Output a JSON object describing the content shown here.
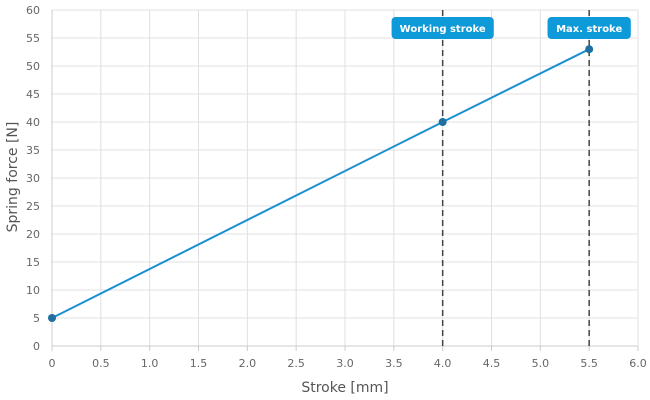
{
  "chart_data": {
    "type": "line",
    "xlabel": "Stroke [mm]",
    "ylabel": "Spring force [N]",
    "xlim": [
      0,
      6
    ],
    "ylim": [
      0,
      60
    ],
    "x_ticks": [
      "0",
      "0.5",
      "1.0",
      "1.5",
      "2.0",
      "2.5",
      "3.0",
      "3.5",
      "4.0",
      "4.5",
      "5.0",
      "5.5",
      "6.0"
    ],
    "y_ticks": [
      "0",
      "5",
      "10",
      "15",
      "20",
      "25",
      "30",
      "35",
      "40",
      "45",
      "50",
      "55",
      "60"
    ],
    "grid": true,
    "series": [
      {
        "points": [
          {
            "x": 0,
            "y": 5
          },
          {
            "x": 4.0,
            "y": 40
          },
          {
            "x": 5.5,
            "y": 53
          }
        ]
      }
    ],
    "annotations": [
      {
        "label": "Working stroke",
        "x": 4.0
      },
      {
        "label": "Max. stroke",
        "x": 5.5
      }
    ]
  },
  "colors": {
    "line": "#1a8fd1",
    "marker": "#1f6fa0",
    "grid": "#e0e0e0",
    "axis": "#cccccc",
    "annotation_line": "#444444",
    "badge": "#0e9ad8"
  }
}
